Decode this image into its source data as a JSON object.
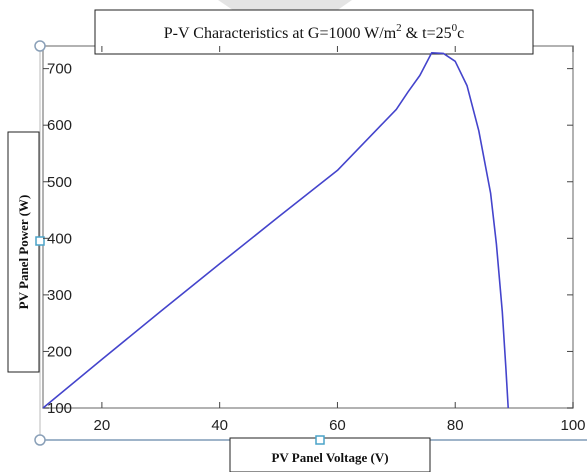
{
  "chart_data": {
    "type": "line",
    "title": {
      "main": "P-V  Characteristics at G=1000  W/m",
      "exp1": "2",
      "mid": " & t=25",
      "exp2": "0",
      "end": "c"
    },
    "xlabel": "PV Panel Voltage (V)",
    "ylabel": "PV Panel Power (W)",
    "xlim": [
      10,
      100
    ],
    "ylim": [
      100,
      740
    ],
    "xticks": [
      20,
      40,
      60,
      80,
      100
    ],
    "yticks": [
      100,
      200,
      300,
      400,
      500,
      600,
      700
    ],
    "grid": false,
    "series": [
      {
        "color": "#4444cc",
        "x": [
          10,
          20,
          30,
          40,
          50,
          60,
          70,
          72,
          74,
          76,
          78,
          80,
          82,
          84,
          86,
          87,
          88,
          88.6,
          89
        ],
        "y": [
          100,
          186,
          271,
          355,
          438,
          520,
          628,
          659,
          688,
          728,
          727,
          713,
          670,
          590,
          480,
          390,
          270,
          170,
          100
        ]
      }
    ]
  }
}
